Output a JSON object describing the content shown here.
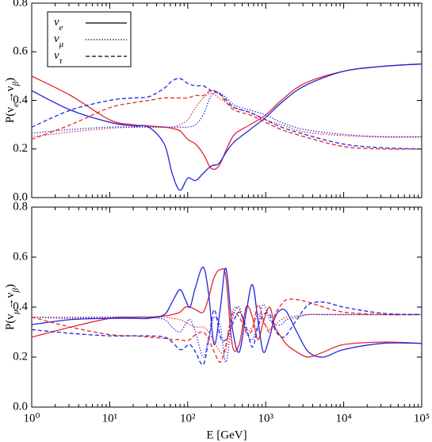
{
  "chart_data": [
    {
      "type": "line",
      "ylabel": "P(ν_e→ν_β)",
      "xlog": true,
      "xlim": [
        1,
        100000
      ],
      "ylim": [
        0,
        0.8
      ],
      "xticks": [
        1,
        10,
        100,
        1000,
        10000,
        100000
      ],
      "yticks": [
        {
          "value": 0,
          "label": "0.0"
        },
        0.2,
        0.4,
        0.6,
        0.8
      ],
      "legend": "upper left",
      "x": [
        1,
        3.16,
        10,
        20,
        31.6,
        50.1,
        63.1,
        79.4,
        100,
        126,
        158,
        200,
        251,
        316,
        398,
        631,
        1000,
        1585,
        3162,
        10000,
        31623,
        100000
      ],
      "series": [
        {
          "name": "ν_e",
          "color": "#e8262a",
          "dash": "solid",
          "values": [
            0.5,
            0.42,
            0.32,
            0.3,
            0.295,
            0.29,
            0.285,
            0.275,
            0.24,
            0.22,
            0.18,
            0.12,
            0.13,
            0.2,
            0.26,
            0.3,
            0.34,
            0.4,
            0.47,
            0.52,
            0.54,
            0.55
          ]
        },
        {
          "name": "ν_e",
          "color": "#2424dc",
          "dash": "solid",
          "values": [
            0.44,
            0.36,
            0.31,
            0.295,
            0.29,
            0.22,
            0.1,
            0.03,
            0.08,
            0.07,
            0.1,
            0.13,
            0.14,
            0.19,
            0.23,
            0.28,
            0.33,
            0.39,
            0.46,
            0.52,
            0.54,
            0.55
          ]
        },
        {
          "name": "ν_μ",
          "color": "#e8262a",
          "dash": "dotted",
          "values": [
            0.25,
            0.27,
            0.285,
            0.29,
            0.29,
            0.29,
            0.29,
            0.3,
            0.32,
            0.37,
            0.41,
            0.43,
            0.41,
            0.39,
            0.37,
            0.35,
            0.32,
            0.3,
            0.27,
            0.255,
            0.25,
            0.25
          ]
        },
        {
          "name": "ν_μ",
          "color": "#2424dc",
          "dash": "dotted",
          "values": [
            0.265,
            0.28,
            0.29,
            0.29,
            0.29,
            0.29,
            0.29,
            0.29,
            0.29,
            0.3,
            0.34,
            0.42,
            0.43,
            0.41,
            0.38,
            0.36,
            0.34,
            0.31,
            0.28,
            0.26,
            0.25,
            0.25
          ]
        },
        {
          "name": "ν_τ",
          "color": "#e8262a",
          "dash": "dashed",
          "values": [
            0.24,
            0.3,
            0.37,
            0.39,
            0.4,
            0.41,
            0.41,
            0.41,
            0.41,
            0.42,
            0.42,
            0.44,
            0.43,
            0.39,
            0.36,
            0.34,
            0.31,
            0.28,
            0.25,
            0.21,
            0.2,
            0.2
          ]
        },
        {
          "name": "ν_τ",
          "color": "#2424dc",
          "dash": "dashed",
          "values": [
            0.29,
            0.36,
            0.4,
            0.41,
            0.415,
            0.45,
            0.48,
            0.49,
            0.47,
            0.46,
            0.46,
            0.44,
            0.43,
            0.4,
            0.37,
            0.35,
            0.32,
            0.29,
            0.26,
            0.22,
            0.205,
            0.2
          ]
        }
      ]
    },
    {
      "type": "line",
      "ylabel": "P(ν_μ→ν_β)",
      "xlabel": "E [GeV]",
      "xlog": true,
      "xlim": [
        1,
        100000
      ],
      "ylim": [
        0,
        0.8
      ],
      "xticks": [
        {
          "value": 1,
          "label": "10⁰"
        },
        {
          "value": 10,
          "label": "10¹"
        },
        {
          "value": 100,
          "label": "10²"
        },
        {
          "value": 1000,
          "label": "10³"
        },
        {
          "value": 10000,
          "label": "10⁴"
        },
        {
          "value": 100000,
          "label": "10⁵"
        }
      ],
      "yticks": [
        {
          "value": 0,
          "label": "0.0"
        },
        0.2,
        0.4,
        0.6,
        0.8
      ],
      "x": [
        1,
        3.16,
        10,
        20,
        31.6,
        50.1,
        63.1,
        79.4,
        93.3,
        107,
        126,
        158,
        186,
        219,
        263,
        309,
        372,
        457,
        562,
        676,
        794,
        933,
        1122,
        1318,
        1585,
        1862,
        2512,
        3548,
        5495,
        10000,
        31623,
        100000
      ],
      "series": [
        {
          "name": "ν_e",
          "color": "#e8262a",
          "dash": "solid",
          "values": [
            0.28,
            0.32,
            0.355,
            0.36,
            0.36,
            0.365,
            0.37,
            0.38,
            0.4,
            0.4,
            0.39,
            0.38,
            0.44,
            0.52,
            0.55,
            0.52,
            0.25,
            0.25,
            0.4,
            0.36,
            0.27,
            0.34,
            0.4,
            0.32,
            0.28,
            0.25,
            0.22,
            0.2,
            0.22,
            0.25,
            0.26,
            0.255
          ]
        },
        {
          "name": "ν_e",
          "color": "#2424dc",
          "dash": "solid",
          "values": [
            0.33,
            0.35,
            0.355,
            0.355,
            0.355,
            0.37,
            0.42,
            0.47,
            0.43,
            0.4,
            0.48,
            0.56,
            0.45,
            0.25,
            0.4,
            0.555,
            0.32,
            0.22,
            0.38,
            0.49,
            0.35,
            0.22,
            0.28,
            0.36,
            0.39,
            0.38,
            0.3,
            0.22,
            0.2,
            0.23,
            0.255,
            0.255
          ]
        },
        {
          "name": "ν_μ",
          "color": "#e8262a",
          "dash": "dotted",
          "values": [
            0.36,
            0.36,
            0.36,
            0.36,
            0.36,
            0.36,
            0.355,
            0.35,
            0.34,
            0.33,
            0.32,
            0.32,
            0.3,
            0.26,
            0.22,
            0.23,
            0.38,
            0.39,
            0.31,
            0.32,
            0.37,
            0.34,
            0.31,
            0.33,
            0.35,
            0.36,
            0.365,
            0.37,
            0.37,
            0.37,
            0.37,
            0.37
          ]
        },
        {
          "name": "ν_μ",
          "color": "#2424dc",
          "dash": "dotted",
          "values": [
            0.36,
            0.355,
            0.36,
            0.36,
            0.36,
            0.35,
            0.32,
            0.3,
            0.33,
            0.35,
            0.3,
            0.2,
            0.28,
            0.36,
            0.32,
            0.18,
            0.35,
            0.4,
            0.3,
            0.27,
            0.33,
            0.41,
            0.35,
            0.33,
            0.33,
            0.35,
            0.36,
            0.37,
            0.37,
            0.37,
            0.37,
            0.37
          ]
        },
        {
          "name": "ν_τ",
          "color": "#e8262a",
          "dash": "dashed",
          "values": [
            0.36,
            0.32,
            0.29,
            0.285,
            0.28,
            0.275,
            0.27,
            0.27,
            0.265,
            0.27,
            0.29,
            0.3,
            0.27,
            0.22,
            0.18,
            0.25,
            0.37,
            0.36,
            0.3,
            0.31,
            0.41,
            0.35,
            0.3,
            0.37,
            0.41,
            0.43,
            0.43,
            0.42,
            0.4,
            0.38,
            0.37,
            0.37
          ]
        },
        {
          "name": "ν_τ",
          "color": "#2424dc",
          "dash": "dashed",
          "values": [
            0.31,
            0.295,
            0.285,
            0.285,
            0.285,
            0.28,
            0.26,
            0.23,
            0.24,
            0.25,
            0.22,
            0.17,
            0.27,
            0.39,
            0.28,
            0.27,
            0.33,
            0.38,
            0.32,
            0.24,
            0.32,
            0.37,
            0.37,
            0.31,
            0.28,
            0.29,
            0.35,
            0.41,
            0.42,
            0.4,
            0.375,
            0.37
          ]
        }
      ]
    }
  ]
}
